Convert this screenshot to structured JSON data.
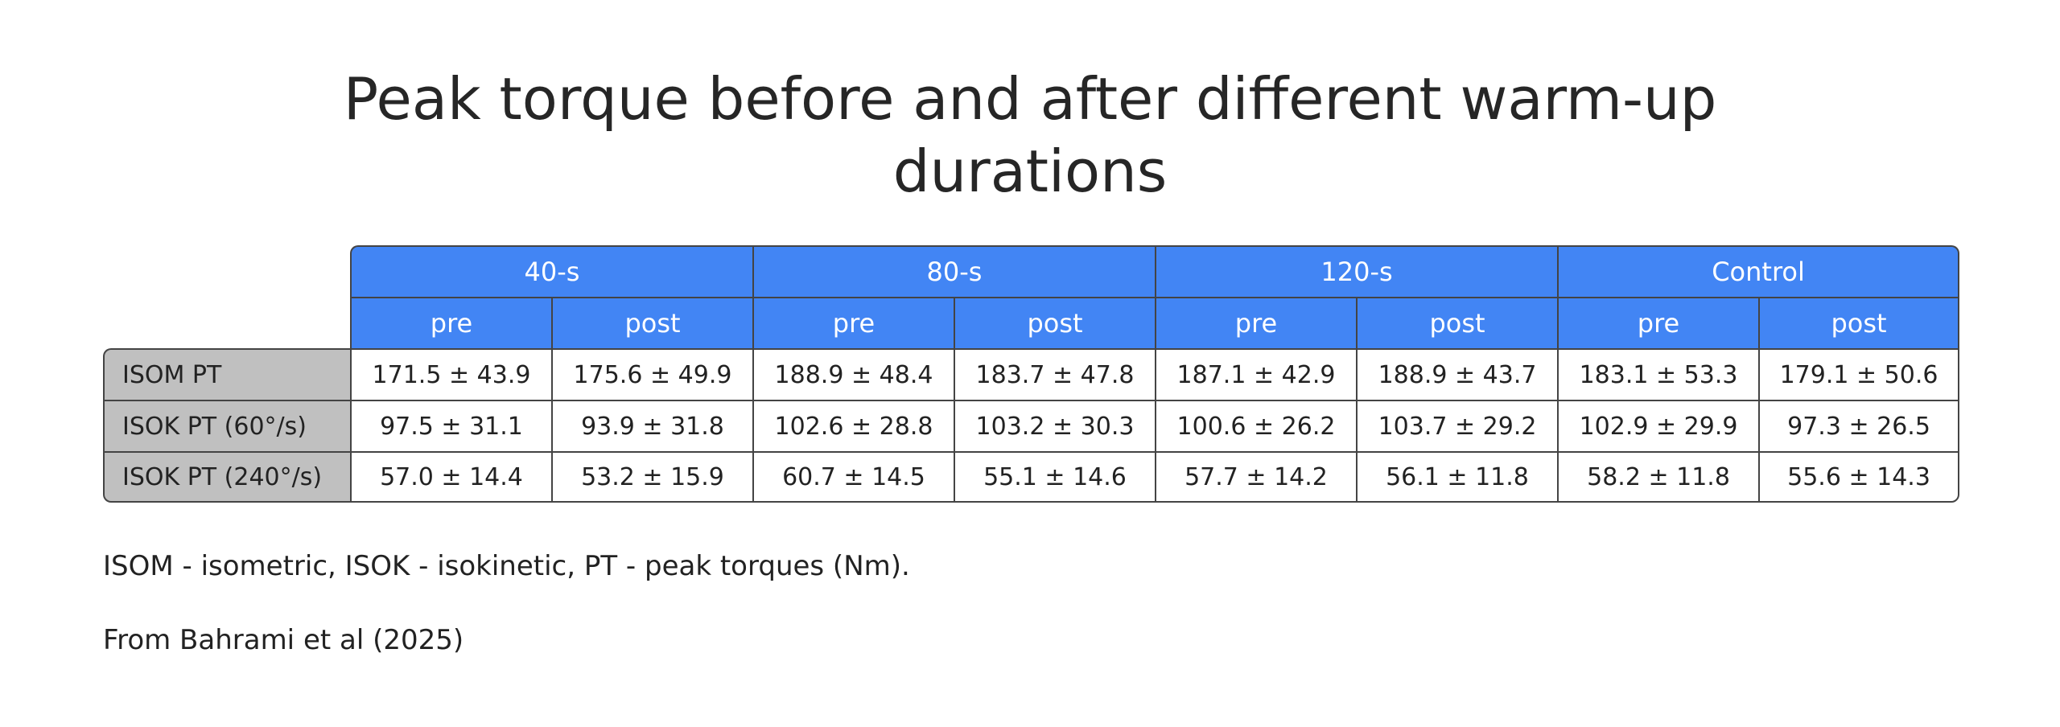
{
  "title": "Peak torque before and after different warm-up durations",
  "table": {
    "groups": [
      "40-s",
      "80-s",
      "120-s",
      "Control"
    ],
    "subheaders": [
      "pre",
      "post",
      "pre",
      "post",
      "pre",
      "post",
      "pre",
      "post"
    ],
    "rows": [
      {
        "label": "ISOM PT",
        "cells": [
          "171.5 ± 43.9",
          "175.6 ± 49.9",
          "188.9 ± 48.4",
          "183.7 ± 47.8",
          "187.1 ± 42.9",
          "188.9 ± 43.7",
          "183.1 ± 53.3",
          "179.1 ± 50.6"
        ]
      },
      {
        "label": "ISOK PT (60°/s)",
        "cells": [
          "97.5 ± 31.1",
          "93.9 ± 31.8",
          "102.6 ± 28.8",
          "103.2 ± 30.3",
          "100.6 ± 26.2",
          "103.7 ± 29.2",
          "102.9 ± 29.9",
          "97.3 ± 26.5"
        ]
      },
      {
        "label": "ISOK PT (240°/s)",
        "cells": [
          "57.0 ± 14.4",
          "53.2 ± 15.9",
          "60.7 ± 14.5",
          "55.1 ± 14.6",
          "57.7 ± 14.2",
          "56.1 ± 11.8",
          "58.2 ± 11.8",
          "55.6 ± 14.3"
        ]
      }
    ]
  },
  "footnote": "ISOM - isometric, ISOK - isokinetic, PT - peak torques (Nm).",
  "source": "From Bahrami et al (2025)",
  "colors": {
    "header_bg": "#4285f4",
    "row_label_bg": "#c0c0c0",
    "border": "#444444"
  }
}
